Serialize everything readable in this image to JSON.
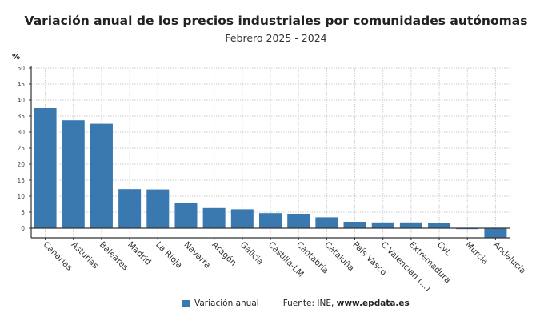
{
  "chart_data": {
    "type": "bar",
    "title": "Variación anual de los precios industriales por comunidades autónomas",
    "subtitle": "Febrero 2025 - 2024",
    "ylabel": "%",
    "ylim": [
      -5,
      50
    ],
    "yticks": [
      0,
      5,
      10,
      15,
      20,
      25,
      30,
      35,
      40,
      45,
      50
    ],
    "grid": true,
    "legend_position": "bottom",
    "categories": [
      "Canarias",
      "Asturias",
      "Baleares",
      "Madrid",
      "La Rioja",
      "Navarra",
      "Aragón",
      "Galicia",
      "Castilla-LM",
      "Cantabria",
      "Cataluña",
      "País Vasco",
      "C.Valencian (...)",
      "Extremadura",
      "CyL",
      "Murcia",
      "Andalucía"
    ],
    "series": [
      {
        "name": "Variación anual",
        "color": "#3a78b0",
        "values": [
          37.5,
          33.7,
          32.6,
          12.2,
          12.1,
          8.0,
          6.3,
          5.9,
          4.7,
          4.5,
          3.4,
          2.0,
          1.8,
          1.8,
          1.6,
          -0.3,
          -3.1
        ]
      }
    ]
  },
  "source": {
    "label": "Fuente: INE, ",
    "site": "www.epdata.es"
  }
}
